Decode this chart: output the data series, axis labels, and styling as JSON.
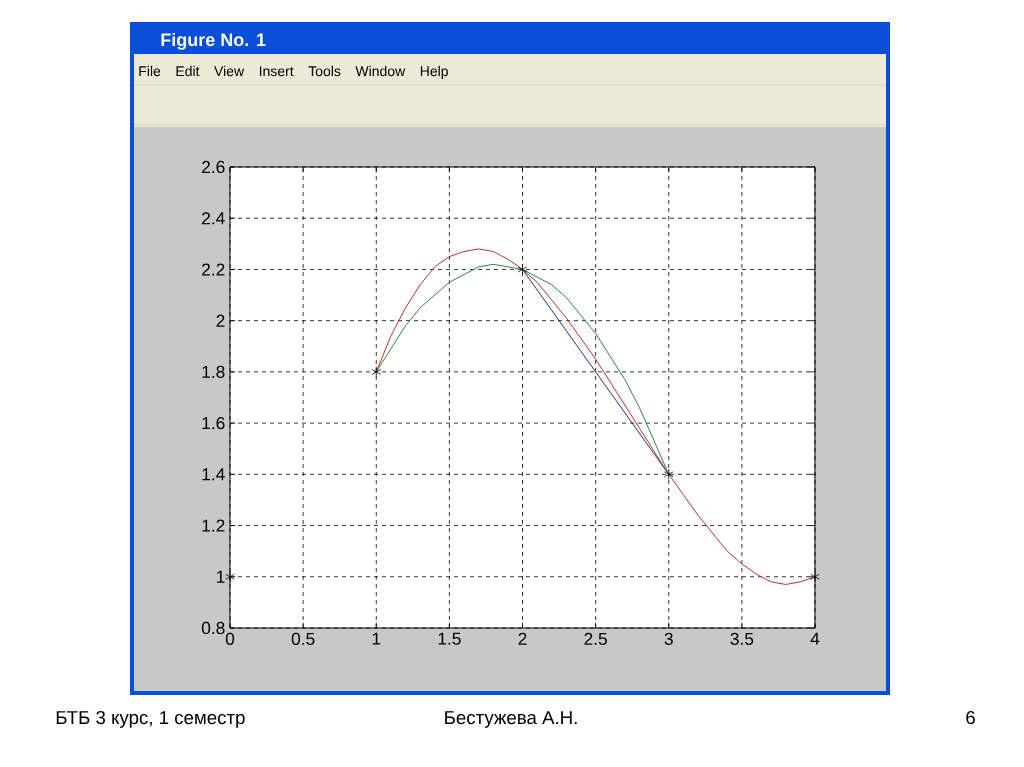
{
  "chart_data": {
    "type": "line",
    "title": "Figure No. 1",
    "xlim": [
      0,
      4
    ],
    "ylim": [
      0.8,
      2.6
    ],
    "xticks": [
      0,
      0.5,
      1,
      1.5,
      2,
      2.5,
      3,
      3.5,
      4
    ],
    "yticks": [
      0.8,
      1,
      1.2,
      1.4,
      1.6,
      1.8,
      2,
      2.2,
      2.4,
      2.6
    ],
    "grid": true,
    "series": [
      {
        "color": "#2b2b8c",
        "x": [
          2,
          3
        ],
        "values": [
          2.2,
          1.4
        ]
      },
      {
        "color": "#c03030",
        "x": [
          1,
          1.1,
          1.2,
          1.3,
          1.4,
          1.5,
          1.6,
          1.7,
          1.8,
          1.9,
          2,
          2.1,
          2.2,
          2.3,
          2.4,
          2.5,
          2.6,
          2.7,
          2.8,
          2.9,
          3,
          3.1,
          3.2,
          3.3,
          3.4,
          3.5,
          3.6,
          3.7,
          3.8,
          3.9,
          4
        ],
        "values": [
          1.8,
          1.94,
          2.05,
          2.14,
          2.21,
          2.25,
          2.27,
          2.28,
          2.27,
          2.24,
          2.2,
          2.15,
          2.08,
          2.01,
          1.93,
          1.85,
          1.76,
          1.67,
          1.58,
          1.49,
          1.4,
          1.32,
          1.24,
          1.17,
          1.1,
          1.05,
          1.01,
          0.98,
          0.97,
          0.98,
          1.0
        ]
      },
      {
        "color": "#2a8a3a",
        "x": [
          1,
          1.1,
          1.2,
          1.3,
          1.4,
          1.5,
          1.6,
          1.7,
          1.8,
          1.9,
          2,
          2.1,
          2.2,
          2.3,
          2.4,
          2.5,
          2.6,
          2.7,
          2.8,
          2.9,
          3
        ],
        "values": [
          1.8,
          1.89,
          1.98,
          2.05,
          2.1,
          2.15,
          2.18,
          2.21,
          2.22,
          2.21,
          2.2,
          2.17,
          2.14,
          2.09,
          2.02,
          1.95,
          1.86,
          1.77,
          1.66,
          1.53,
          1.4
        ]
      },
      {
        "type": "scatter",
        "color": "#000000",
        "marker": "cross",
        "x": [
          0,
          1,
          2,
          3,
          4
        ],
        "values": [
          1,
          1.8,
          2.2,
          1.4,
          1
        ]
      }
    ],
    "annotations": [
      "File",
      "Edit",
      "View",
      "Insert",
      "Tools",
      "Window",
      "Help",
      "БТБ  3 курс, 1 семестр",
      "Бестужева А.Н.",
      "6"
    ]
  }
}
